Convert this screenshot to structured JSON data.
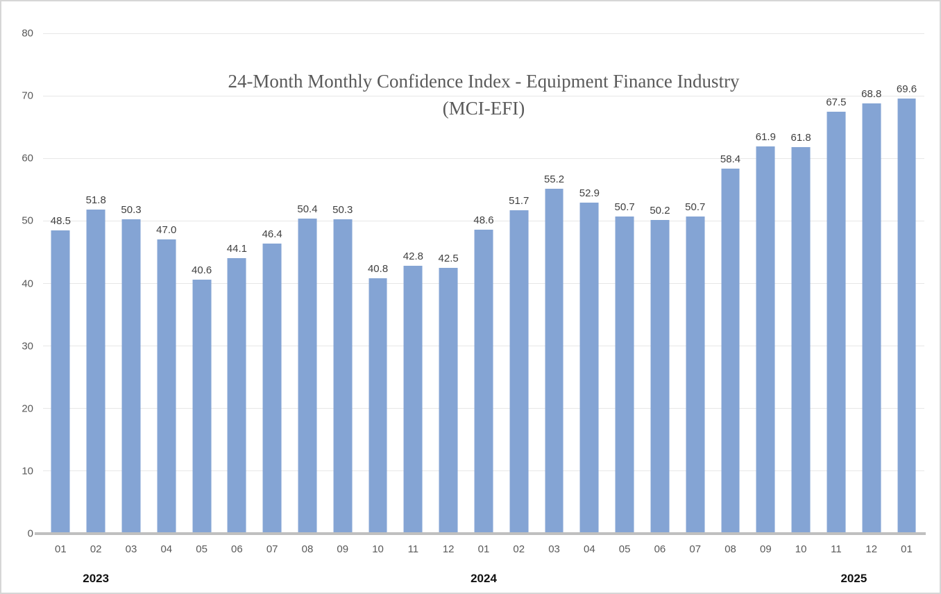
{
  "chart_data": {
    "type": "bar",
    "title_line1": "24-Month Monthly Confidence Index - Equipment Finance Industry",
    "title_line2": "(MCI-EFI)",
    "categories": [
      "01",
      "02",
      "03",
      "04",
      "05",
      "06",
      "07",
      "08",
      "09",
      "10",
      "11",
      "12",
      "01",
      "02",
      "03",
      "04",
      "05",
      "06",
      "07",
      "08",
      "09",
      "10",
      "11",
      "12",
      "01"
    ],
    "values": [
      48.5,
      51.8,
      50.3,
      47.0,
      40.6,
      44.1,
      46.4,
      50.4,
      50.3,
      40.8,
      42.8,
      42.5,
      48.6,
      51.7,
      55.2,
      52.9,
      50.7,
      50.2,
      50.7,
      58.4,
      61.9,
      61.8,
      67.5,
      68.8,
      69.6
    ],
    "value_labels": [
      "48.5",
      "51.8",
      "50.3",
      "47.0",
      "40.6",
      "44.1",
      "46.4",
      "50.4",
      "50.3",
      "40.8",
      "42.8",
      "42.5",
      "48.6",
      "51.7",
      "55.2",
      "52.9",
      "50.7",
      "50.2",
      "50.7",
      "58.4",
      "61.9",
      "61.8",
      "67.5",
      "68.8",
      "69.6"
    ],
    "year_labels": [
      {
        "label": "2023",
        "x_percent": 6.0
      },
      {
        "label": "2024",
        "x_percent": 50.0
      },
      {
        "label": "2025",
        "x_percent": 92.0
      }
    ],
    "xlabel": "",
    "ylabel": "",
    "ylim": [
      0,
      80
    ],
    "ytick_step": 10,
    "yticks": [
      "80",
      "70",
      "60",
      "50",
      "40",
      "30",
      "20",
      "10",
      "0"
    ],
    "grid": true,
    "legend_position": "none",
    "bar_color": "#84a4d4",
    "gridline_color": "#e7e7e7",
    "axis_line_color": "#bfbfbf",
    "tick_label_color": "#595959",
    "data_label_color": "#3f3f3f",
    "title_color": "#595959"
  }
}
